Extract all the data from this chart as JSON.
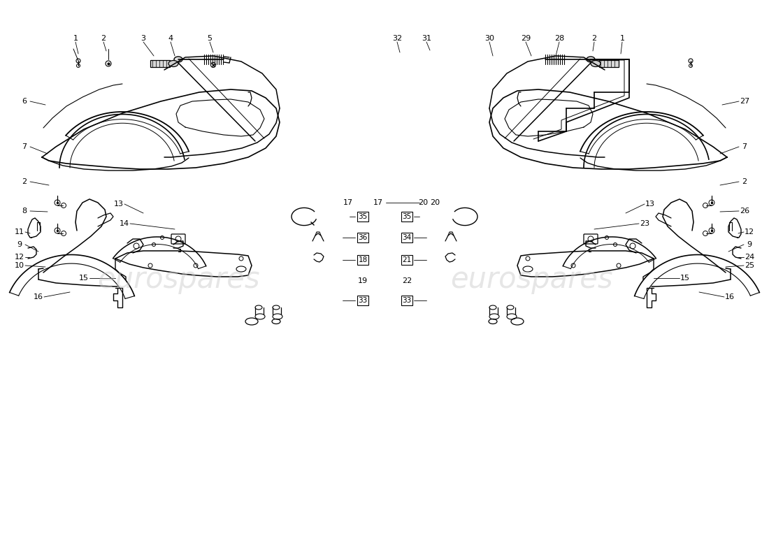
{
  "bg_color": "#ffffff",
  "line_color": "#000000",
  "lw_main": 1.0,
  "lw_thin": 0.6,
  "watermark_text": "eurospares",
  "watermark_color": "#c8c8c8",
  "label_fs": 7.5,
  "left_upper_labels": [
    [
      1,
      "1",
      95,
      735,
      110,
      715
    ],
    [
      2,
      "2",
      140,
      735,
      153,
      715
    ],
    [
      3,
      "3",
      200,
      735,
      205,
      710
    ],
    [
      4,
      "4",
      238,
      735,
      245,
      710
    ],
    [
      5,
      "5",
      295,
      735,
      308,
      710
    ]
  ],
  "left_side_labels": [
    [
      6,
      "6",
      40,
      610,
      75,
      608
    ],
    [
      7,
      "7",
      40,
      553,
      80,
      545
    ],
    [
      2,
      "2",
      40,
      500,
      85,
      500
    ],
    [
      8,
      "8",
      40,
      460,
      80,
      462
    ]
  ]
}
